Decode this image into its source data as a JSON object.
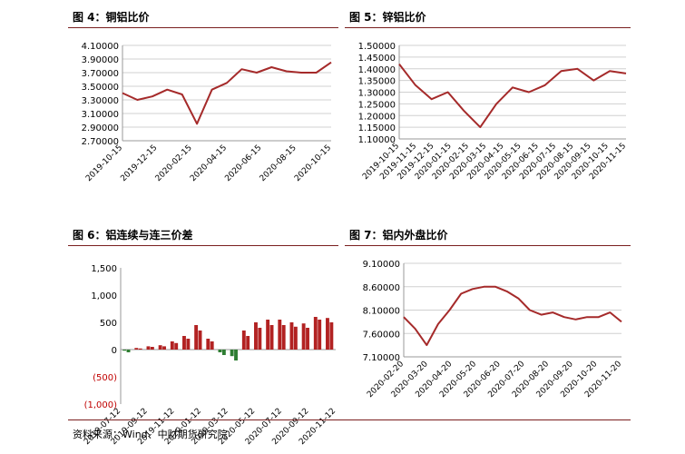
{
  "panels": [
    {
      "title": "图 4：铜铝比价"
    },
    {
      "title": "图 5：锌铝比价"
    },
    {
      "title": "图 6：铝连续与连三价差"
    },
    {
      "title": "图 7：铝内外盘比价"
    }
  ],
  "source": "资料来源：Wind、中财期货研究院",
  "colors": {
    "line": "#a52a2a",
    "bar_pos": "#b22222",
    "bar_neg": "#2e7d32",
    "rule": "#7a1f1f",
    "grid": "#d0d0d0"
  },
  "chart_data": [
    {
      "type": "line",
      "title": "",
      "x": [
        "2019-10-15",
        "2019-11-15",
        "2019-12-15",
        "2020-01-15",
        "2020-02-15",
        "2020-03-15",
        "2020-04-15",
        "2020-05-15",
        "2020-06-15",
        "2020-07-15",
        "2020-08-15",
        "2020-09-15",
        "2020-10-15",
        "2020-11-15",
        "2020-12-01"
      ],
      "tick_labels": [
        "2019-10-15",
        "2019-12-15",
        "2020-02-15",
        "2020-04-15",
        "2020-06-15",
        "2020-08-15",
        "2020-10-15"
      ],
      "series": [
        {
          "values": [
            3.4,
            3.3,
            3.35,
            3.45,
            3.38,
            2.95,
            3.45,
            3.55,
            3.75,
            3.7,
            3.78,
            3.72,
            3.7,
            3.7,
            3.85
          ]
        }
      ],
      "yticks": [
        "4.10000",
        "3.90000",
        "3.70000",
        "3.50000",
        "3.30000",
        "3.10000",
        "2.90000",
        "2.70000"
      ],
      "ylim": [
        2.7,
        4.1
      ],
      "grid": "horizontal"
    },
    {
      "type": "line",
      "title": "",
      "x": [
        "2019-10-15",
        "2019-11-15",
        "2019-12-15",
        "2020-01-15",
        "2020-02-15",
        "2020-03-15",
        "2020-04-15",
        "2020-05-15",
        "2020-06-15",
        "2020-07-15",
        "2020-08-15",
        "2020-09-15",
        "2020-10-15",
        "2020-11-15",
        "2020-11-30"
      ],
      "tick_labels": [
        "2019-10-15",
        "2019-11-15",
        "2019-12-15",
        "2020-01-15",
        "2020-02-15",
        "2020-03-15",
        "2020-04-15",
        "2020-05-15",
        "2020-06-15",
        "2020-07-15",
        "2020-08-15",
        "2020-09-15",
        "2020-10-15",
        "2020-11-15"
      ],
      "series": [
        {
          "values": [
            1.42,
            1.33,
            1.27,
            1.3,
            1.22,
            1.15,
            1.25,
            1.32,
            1.3,
            1.33,
            1.39,
            1.4,
            1.35,
            1.39,
            1.38
          ]
        }
      ],
      "yticks": [
        "1.50000",
        "1.45000",
        "1.40000",
        "1.35000",
        "1.30000",
        "1.25000",
        "1.20000",
        "1.15000",
        "1.10000"
      ],
      "ylim": [
        1.1,
        1.5
      ],
      "grid": "horizontal"
    },
    {
      "type": "bar",
      "title": "",
      "x": [
        "2019-07-12",
        "2019-08-12",
        "2019-09-12",
        "2019-10-12",
        "2019-11-12",
        "2019-12-12",
        "2020-01-12",
        "2020-02-12",
        "2020-03-12",
        "2020-04-12",
        "2020-05-12",
        "2020-06-12",
        "2020-07-12",
        "2020-08-12",
        "2020-09-12",
        "2020-10-12",
        "2020-11-12",
        "2020-12-01"
      ],
      "tick_labels": [
        "2019-07-12",
        "2019-09-12",
        "2019-11-12",
        "2020-01-12",
        "2020-03-12",
        "2020-05-12",
        "2020-07-12",
        "2020-09-12",
        "2020-11-12"
      ],
      "series": [
        {
          "values": [
            -20,
            30,
            60,
            80,
            150,
            250,
            450,
            200,
            -50,
            -120,
            350,
            500,
            550,
            550,
            500,
            480,
            600,
            580
          ]
        },
        {
          "values": [
            -50,
            20,
            50,
            60,
            120,
            200,
            350,
            150,
            -100,
            -200,
            250,
            400,
            450,
            450,
            420,
            400,
            550,
            500
          ]
        }
      ],
      "yticks": [
        "1,500",
        "1,000",
        "500",
        "0",
        "(500)",
        "(1,000)"
      ],
      "ylim": [
        -1000,
        1500
      ],
      "grid": "none"
    },
    {
      "type": "line",
      "title": "",
      "x": [
        "2020-02-20",
        "2020-03-05",
        "2020-03-20",
        "2020-04-05",
        "2020-04-20",
        "2020-05-05",
        "2020-05-20",
        "2020-06-05",
        "2020-06-20",
        "2020-07-05",
        "2020-07-20",
        "2020-08-05",
        "2020-08-20",
        "2020-09-05",
        "2020-09-20",
        "2020-10-05",
        "2020-10-20",
        "2020-11-05",
        "2020-11-20",
        "2020-12-01"
      ],
      "tick_labels": [
        "2020-02-20",
        "2020-03-20",
        "2020-04-20",
        "2020-05-20",
        "2020-06-20",
        "2020-07-20",
        "2020-08-20",
        "2020-09-20",
        "2020-10-20",
        "2020-11-20"
      ],
      "series": [
        {
          "values": [
            7.95,
            7.7,
            7.35,
            7.8,
            8.1,
            8.45,
            8.55,
            8.6,
            8.6,
            8.5,
            8.35,
            8.1,
            8.0,
            8.05,
            7.95,
            7.9,
            7.95,
            7.95,
            8.05,
            7.85
          ]
        }
      ],
      "yticks": [
        "9.10000",
        "8.60000",
        "8.10000",
        "7.60000",
        "7.10000"
      ],
      "ylim": [
        7.1,
        9.1
      ],
      "grid": "horizontal"
    }
  ]
}
